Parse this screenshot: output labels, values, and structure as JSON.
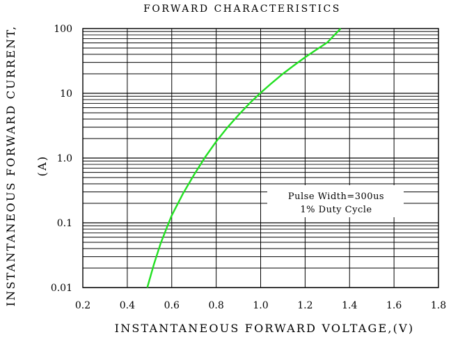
{
  "chart_data": {
    "type": "line",
    "title": "FORWARD CHARACTERISTICS",
    "xlabel": "INSTANTANEOUS FORWARD VOLTAGE,(V)",
    "ylabel_line1": "INSTANTANEOUS FORWARD CURRENT,",
    "ylabel_line2": "(A)",
    "xlim": [
      0.2,
      1.8
    ],
    "ylim": [
      0.01,
      100
    ],
    "yscale": "log",
    "grid": true,
    "x_ticks": [
      0.2,
      0.4,
      0.6,
      0.8,
      1.0,
      1.2,
      1.4,
      1.6,
      1.8
    ],
    "x_tick_labels": [
      "0.2",
      "0.4",
      "0.6",
      "0.8",
      "1.0",
      "1.2",
      "1.4",
      "1.6",
      "1.8"
    ],
    "y_ticks": [
      0.01,
      0.1,
      1,
      10,
      100
    ],
    "y_tick_labels": [
      "0.01",
      "0.1",
      "1.0",
      "10",
      "100"
    ],
    "annotation_line1": "Pulse Width=300us",
    "annotation_line2": "1% Duty Cycle",
    "line_color": "#22e022",
    "series": [
      {
        "x": [
          0.49,
          0.52,
          0.55,
          0.58,
          0.6,
          0.65,
          0.7,
          0.75,
          0.8,
          0.85,
          0.9,
          0.95,
          1.0,
          1.05,
          1.1,
          1.15,
          1.2,
          1.25,
          1.3,
          1.36
        ],
        "y": [
          0.01,
          0.023,
          0.048,
          0.088,
          0.13,
          0.28,
          0.55,
          1.03,
          1.8,
          2.95,
          4.6,
          7.0,
          10.2,
          14.4,
          20,
          27,
          36,
          47,
          61,
          100
        ]
      }
    ]
  }
}
